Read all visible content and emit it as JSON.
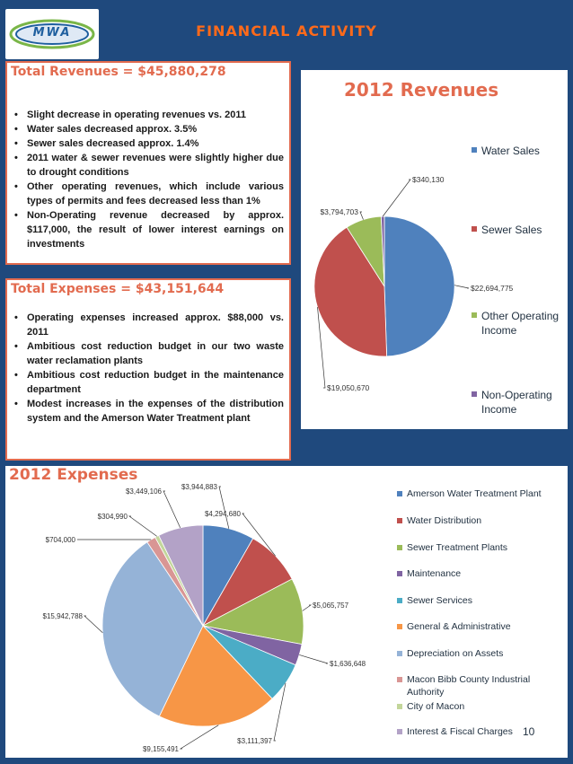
{
  "logo": {
    "text": "MWA"
  },
  "header": {
    "title": "FINANCIAL  ACTIVITY"
  },
  "revenue_box": {
    "heading": "Total Revenues = $45,880,278",
    "bullets": [
      "Slight decrease in operating revenues vs. 2011",
      "Water sales decreased approx. 3.5%",
      "Sewer sales decreased approx. 1.4%",
      "2011 water & sewer revenues were slightly higher due to drought  conditions",
      "Other operating revenues, which include various types of permits and fees decreased less than 1%",
      "Non-Operating revenue decreased by approx. $117,000, the result of lower interest earnings on investments"
    ]
  },
  "expense_box": {
    "heading": "Total Expenses = $43,151,644",
    "bullets": [
      "Operating expenses increased approx. $88,000 vs. 2011",
      "Ambitious cost reduction budget in our two waste water reclamation plants",
      "Ambitious cost reduction budget in the maintenance department",
      "Modest increases in the expenses of the distribution system and the Amerson Water Treatment plant"
    ]
  },
  "chart_data": [
    {
      "type": "pie",
      "title": "2012 Revenues",
      "categories": [
        "Water Sales",
        "Sewer Sales",
        "Other Operating Income",
        "Non-Operating Income"
      ],
      "values": [
        22694775,
        19050670,
        3794703,
        340130
      ],
      "data_labels": [
        "$22,694,775",
        "$19,050,670",
        "$3,794,703",
        "$340,130"
      ],
      "colors": [
        "#4f81bd",
        "#c0504d",
        "#9bbb59",
        "#8064a2"
      ],
      "legend": "right"
    },
    {
      "type": "pie",
      "title": "2012 Expenses",
      "categories": [
        "Amerson Water Treatment Plant",
        "Water Distribution",
        "Sewer Treatment Plants",
        "Maintenance",
        "Sewer Services",
        "General & Administrative",
        "Depreciation on Assets",
        "Macon Bibb County Industrial Authority",
        "City of Macon",
        "Interest & Fiscal Charges"
      ],
      "values": [
        3944883,
        4294680,
        5065757,
        1636648,
        3111397,
        9155491,
        15942788,
        704000,
        304990,
        3449106
      ],
      "data_labels": [
        "$3,944,883",
        "$4,294,680",
        "$5,065,757",
        "$1,636,648",
        "$3,111,397",
        "$9,155,491",
        "$15,942,788",
        "$704,000",
        "$304,990",
        "$3,449,106"
      ],
      "colors": [
        "#4f81bd",
        "#c0504d",
        "#9bbb59",
        "#8064a2",
        "#4bacc6",
        "#f79646",
        "#95b3d7",
        "#d99694",
        "#c3d69b",
        "#b3a2c7"
      ],
      "legend": "right"
    }
  ],
  "footer": {
    "page_number": "10"
  }
}
